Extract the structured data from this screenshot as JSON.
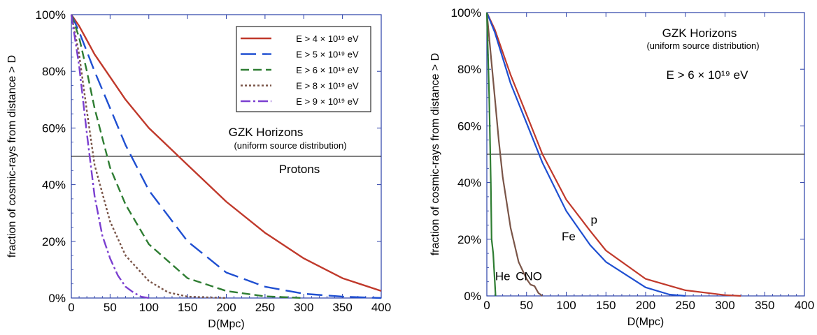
{
  "chart_data": [
    {
      "type": "line",
      "xlabel": "D(Mpc)",
      "ylabel": "fraction of cosmic-rays from distance > D",
      "xlim": [
        0,
        400
      ],
      "ylim": [
        0,
        100
      ],
      "x_ticks": [
        "0",
        "50",
        "100",
        "150",
        "200",
        "250",
        "300",
        "350",
        "400"
      ],
      "y_ticks": [
        "0%",
        "20%",
        "40%",
        "60%",
        "80%",
        "100%"
      ],
      "annotations": {
        "title": "GZK Horizons",
        "subtitle": "(uniform source distribution)",
        "label": "Protons"
      },
      "reference_line_y": 50,
      "legend_position": "top-right",
      "series": [
        {
          "name": "E > 4 × 10¹⁹ eV",
          "color": "#c0392b",
          "dash": "",
          "x": [
            0,
            10,
            20,
            30,
            50,
            70,
            100,
            150,
            200,
            250,
            300,
            350,
            400
          ],
          "y": [
            100,
            96,
            91,
            86,
            78,
            70,
            60,
            47,
            34,
            23,
            14,
            7,
            2.5
          ]
        },
        {
          "name": "E > 5 × 10¹⁹ eV",
          "color": "#1f4fd1",
          "dash": "22,9",
          "x": [
            0,
            10,
            20,
            30,
            50,
            70,
            100,
            150,
            200,
            250,
            300,
            350,
            400
          ],
          "y": [
            100,
            94,
            87,
            80,
            67,
            54,
            38,
            20,
            9,
            4,
            1.5,
            0.5,
            0
          ]
        },
        {
          "name": "E > 6 × 10¹⁹ eV",
          "color": "#2e7d32",
          "dash": "12,6",
          "x": [
            0,
            10,
            20,
            30,
            50,
            70,
            100,
            150,
            200,
            250,
            300
          ],
          "y": [
            100,
            92,
            80,
            67,
            46,
            33,
            19,
            7,
            2.5,
            0.6,
            0
          ]
        },
        {
          "name": "E > 8 × 10¹⁹ eV",
          "color": "#7a5548",
          "dash": "3,3",
          "x": [
            0,
            10,
            20,
            30,
            50,
            70,
            100,
            125,
            150,
            200
          ],
          "y": [
            100,
            86,
            66,
            47,
            27,
            15,
            6,
            2,
            0.5,
            0
          ]
        },
        {
          "name": "E > 9 × 10¹⁹ eV",
          "color": "#7b3fd0",
          "dash": "14,4,3,4",
          "x": [
            0,
            10,
            20,
            30,
            40,
            50,
            60,
            70,
            80,
            90,
            100
          ],
          "y": [
            100,
            82,
            58,
            36,
            22,
            14,
            8,
            4,
            2,
            0.5,
            0
          ]
        }
      ]
    },
    {
      "type": "line",
      "xlabel": "D(Mpc)",
      "ylabel": "fraction of cosmic-rays from distance > D",
      "xlim": [
        0,
        400
      ],
      "ylim": [
        0,
        100
      ],
      "x_ticks": [
        "0",
        "50",
        "100",
        "150",
        "200",
        "250",
        "300",
        "350",
        "400"
      ],
      "y_ticks": [
        "0%",
        "20%",
        "40%",
        "60%",
        "80%",
        "100%"
      ],
      "annotations": {
        "title": "GZK Horizons",
        "subtitle": "(uniform source distribution)",
        "energy_label": "E > 6 × 10¹⁹ eV"
      },
      "reference_line_y": 50,
      "series": [
        {
          "name": "p",
          "color": "#c0392b",
          "x": [
            0,
            10,
            20,
            30,
            50,
            70,
            100,
            130,
            150,
            200,
            250,
            300,
            320
          ],
          "y": [
            100,
            94,
            86,
            78,
            64,
            50,
            34,
            23,
            16,
            6,
            2,
            0.3,
            0
          ]
        },
        {
          "name": "Fe",
          "color": "#1f4fd1",
          "x": [
            0,
            10,
            20,
            30,
            50,
            70,
            100,
            130,
            150,
            200,
            230,
            250
          ],
          "y": [
            100,
            93,
            84,
            75,
            61,
            47,
            30,
            18,
            12,
            3,
            0.5,
            0
          ]
        },
        {
          "name": "CNO",
          "color": "#7a5548",
          "x": [
            0,
            5,
            10,
            15,
            20,
            30,
            40,
            50,
            55,
            60,
            65,
            70
          ],
          "y": [
            100,
            85,
            70,
            55,
            42,
            24,
            12,
            6,
            4,
            3.5,
            1,
            0
          ]
        },
        {
          "name": "He",
          "color": "#2e7d32",
          "x": [
            0,
            3,
            5,
            6,
            8,
            9,
            10,
            11
          ],
          "y": [
            100,
            70,
            40,
            20,
            15,
            10,
            5,
            0
          ]
        }
      ],
      "series_labels": {
        "p": {
          "x": 135,
          "y": 27
        },
        "Fe": {
          "x": 103,
          "y": 21
        },
        "CNO": {
          "x": 53,
          "y": 7
        },
        "He": {
          "x": 20,
          "y": 7
        }
      }
    }
  ]
}
